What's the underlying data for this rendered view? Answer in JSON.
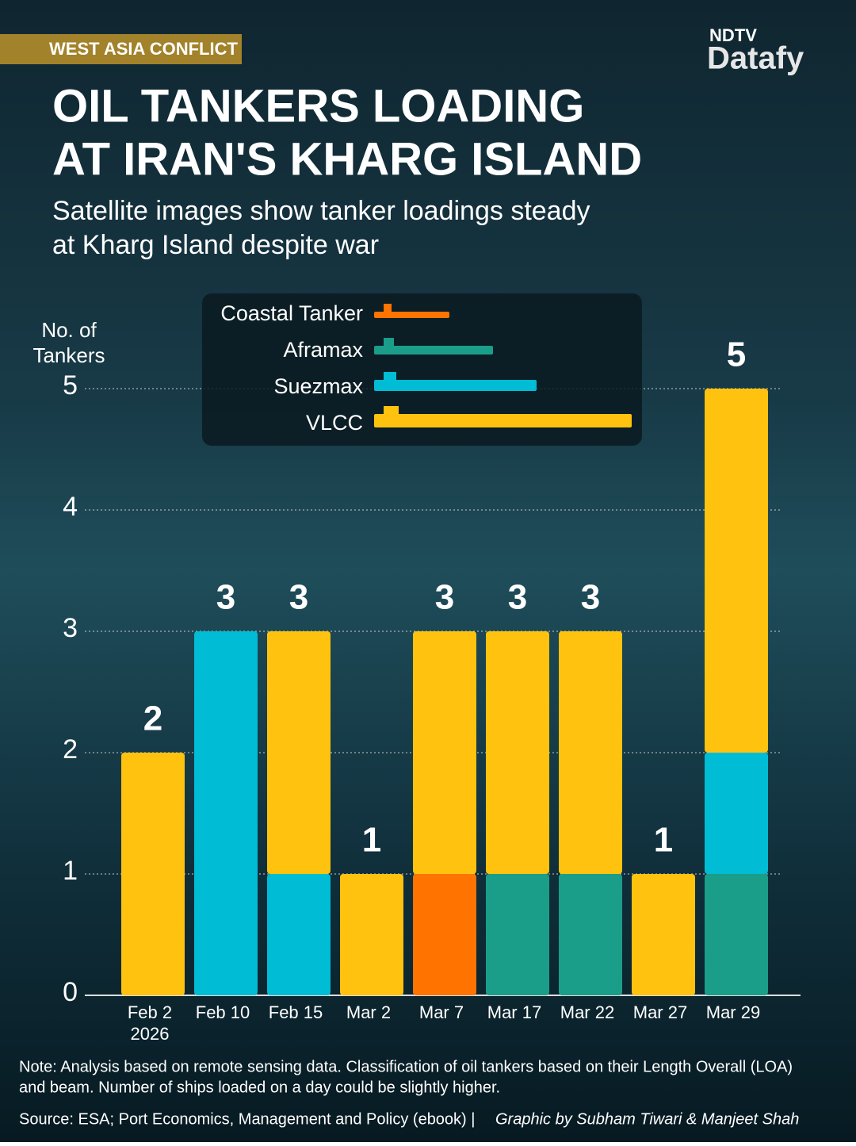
{
  "chart_data": {
    "type": "stacked_bar",
    "tag": "WEST ASIA CONFLICT",
    "brand": {
      "top": "NDTV",
      "bottom": "Datafy"
    },
    "title": [
      "OIL TANKERS LOADING",
      "AT IRAN'S KHARG ISLAND"
    ],
    "subtitle": [
      "Satellite images show tanker loadings steady",
      "at Kharg Island despite war"
    ],
    "y_label": [
      "No. of",
      "Tankers"
    ],
    "categories": [
      "Feb 2",
      "Feb 10",
      "Feb 15",
      "Mar 2",
      "Mar 7",
      "Mar 17",
      "Mar 22",
      "Mar 27",
      "Mar 29"
    ],
    "year_label": "2026",
    "series": [
      {
        "name": "Coastal Tanker",
        "color": "#ff7300",
        "values": [
          0,
          0,
          0,
          0,
          1,
          0,
          0,
          0,
          0
        ]
      },
      {
        "name": "Aframax",
        "color": "#1a9e8a",
        "values": [
          0,
          0,
          0,
          0,
          0,
          1,
          1,
          0,
          1
        ]
      },
      {
        "name": "Suezmax",
        "color": "#00bcd4",
        "values": [
          0,
          3,
          1,
          0,
          0,
          0,
          0,
          0,
          1
        ]
      },
      {
        "name": "VLCC",
        "color": "#ffc20e",
        "values": [
          2,
          0,
          2,
          1,
          2,
          2,
          2,
          1,
          3
        ]
      }
    ],
    "totals": [
      2,
      3,
      3,
      1,
      3,
      3,
      3,
      1,
      5
    ],
    "ylim": [
      0,
      5
    ],
    "yticks": [
      0,
      1,
      2,
      3,
      4,
      5
    ],
    "grid": true,
    "note": [
      "Note: Analysis based on remote sensing data. Classification of oil tankers based on their Length Overall (LOA)",
      "and beam. Number of ships loaded on a day could be slightly higher."
    ],
    "source": "Source: ESA; Port Economics, Management and Policy (ebook) |",
    "credit": "Graphic by Subham Tiwari & Manjeet Shah"
  }
}
